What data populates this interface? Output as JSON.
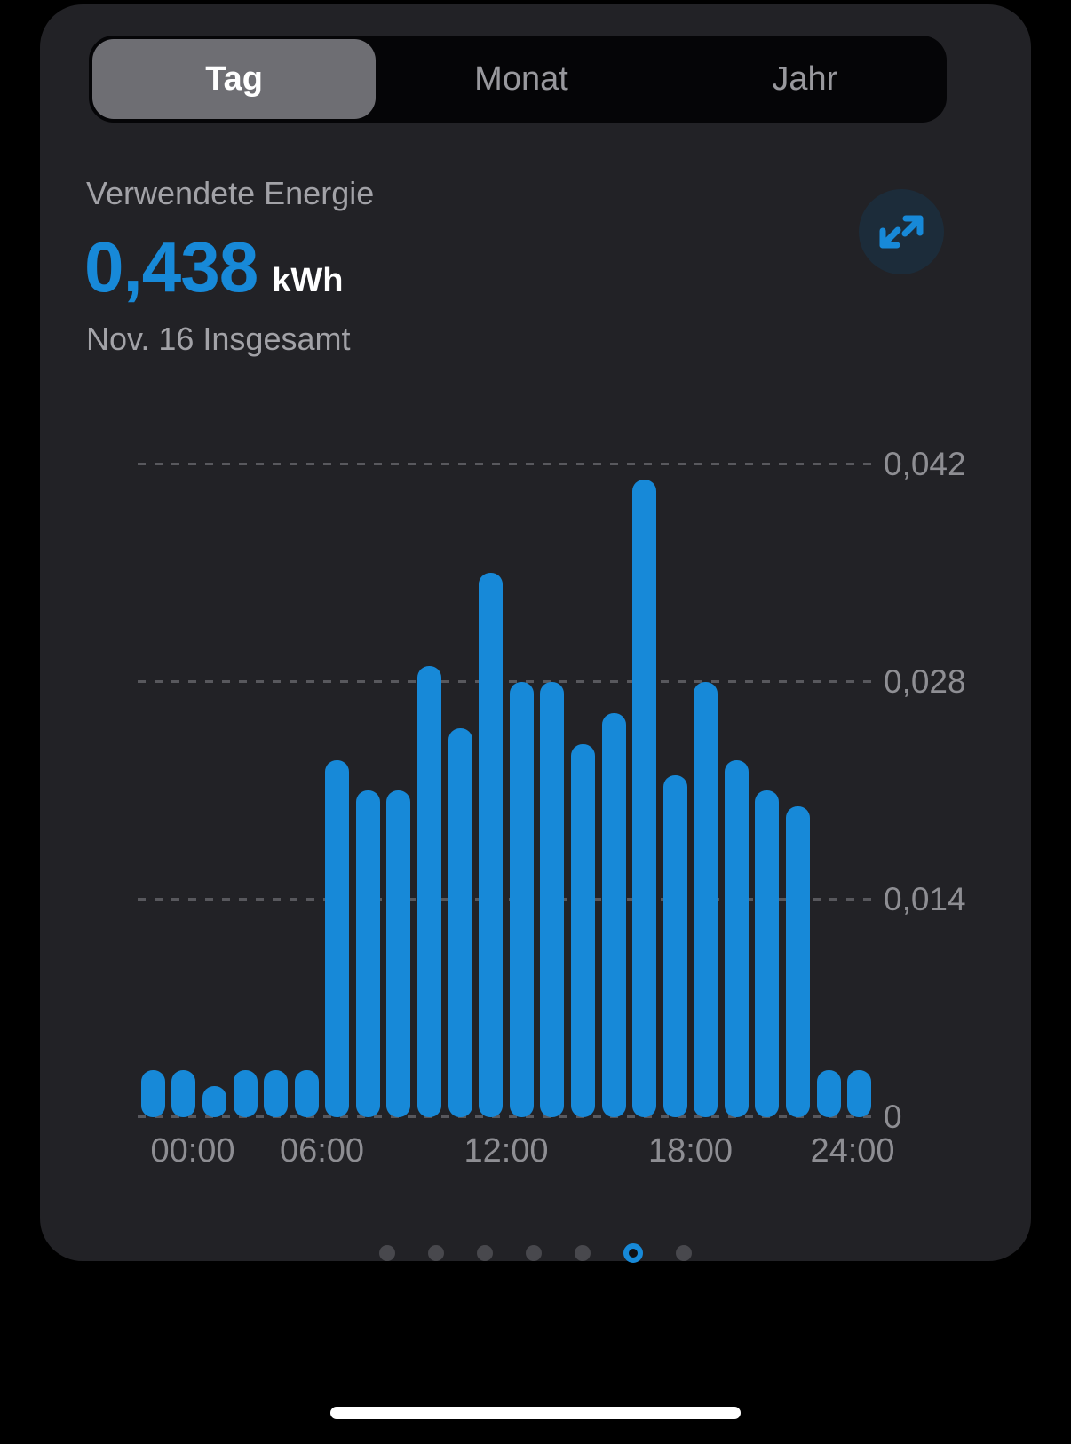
{
  "tabs": {
    "items": [
      {
        "label": "Tag",
        "selected": true
      },
      {
        "label": "Monat",
        "selected": false
      },
      {
        "label": "Jahr",
        "selected": false
      }
    ]
  },
  "header": {
    "title": "Verwendete Energie",
    "value": "0,438",
    "unit": "kWh",
    "subtitle": "Nov. 16 Insgesamt"
  },
  "icons": {
    "expand": "diagonal-expand-arrows"
  },
  "colors": {
    "accent_blue": "#1789d8",
    "card_background": "#222226",
    "outer_background": "#000000",
    "bar_color": "#1789d8",
    "grid_color": "#58585d",
    "label_gray": "#8e8e93"
  },
  "chart_data": {
    "type": "bar",
    "title": "Verwendete Energie",
    "unit": "kWh",
    "total_kwh": 0.438,
    "categories": [
      "00:00",
      "01:00",
      "02:00",
      "03:00",
      "04:00",
      "05:00",
      "06:00",
      "07:00",
      "08:00",
      "09:00",
      "10:00",
      "11:00",
      "12:00",
      "13:00",
      "14:00",
      "15:00",
      "16:00",
      "17:00",
      "18:00",
      "19:00",
      "20:00",
      "21:00",
      "22:00",
      "23:00"
    ],
    "values": [
      0.003,
      0.003,
      0.002,
      0.003,
      0.003,
      0.003,
      0.023,
      0.021,
      0.021,
      0.029,
      0.025,
      0.035,
      0.028,
      0.028,
      0.024,
      0.026,
      0.041,
      0.022,
      0.028,
      0.023,
      0.021,
      0.02,
      0.003,
      0.003
    ],
    "ylim": [
      0,
      0.042
    ],
    "grid": "dashed-horizontal",
    "bar_color": "#1789d8",
    "y_ticks": [
      {
        "v": 0,
        "label": "0"
      },
      {
        "v": 0.014,
        "label": "0,014"
      },
      {
        "v": 0.028,
        "label": "0,028"
      },
      {
        "v": 0.042,
        "label": "0,042"
      }
    ],
    "x_ticks": [
      {
        "h": 0,
        "label": "00:00"
      },
      {
        "h": 6,
        "label": "06:00"
      },
      {
        "h": 12,
        "label": "12:00"
      },
      {
        "h": 18,
        "label": "18:00"
      },
      {
        "h": 24,
        "label": "24:00"
      }
    ]
  },
  "pager": {
    "count": 7,
    "active_index": 5
  }
}
